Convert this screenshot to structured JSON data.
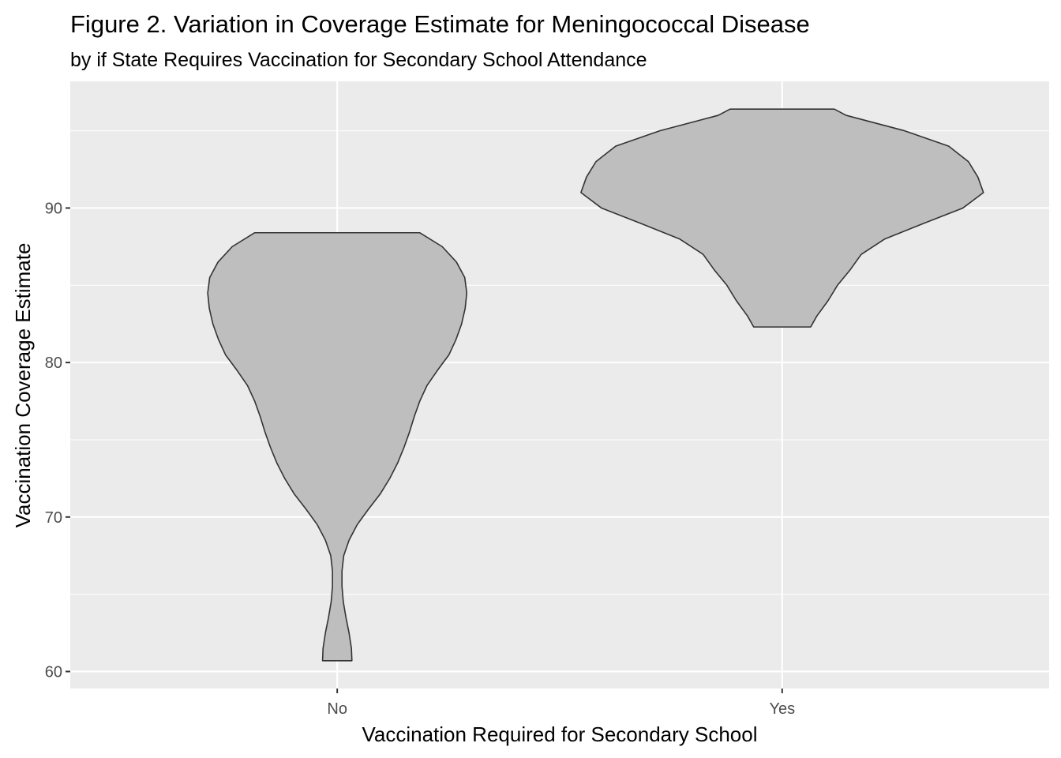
{
  "chart_data": {
    "type": "violin",
    "title": "Figure 2. Variation in Coverage Estimate for Meningococcal Disease",
    "subtitle": "by if State Requires Vaccination for Secondary School Attendance",
    "xlabel": "Vaccination Required for Secondary School",
    "ylabel": "Vaccination Coverage Estimate",
    "categories": [
      "No",
      "Yes"
    ],
    "ylim": [
      58.9,
      98.2
    ],
    "yticks": [
      60,
      70,
      80,
      90
    ],
    "yticklabels": [
      "60",
      "70",
      "80",
      "90"
    ],
    "grid": true,
    "legend": "none",
    "colors": {
      "panel": "#ebebeb",
      "fill": "#bebebe",
      "outline": "#333333",
      "grid": "#ffffff"
    },
    "series": [
      {
        "category": "No",
        "range": [
          60.7,
          88.4
        ],
        "density_profile": [
          {
            "y": 60.7,
            "w": 0.033
          },
          {
            "y": 61.5,
            "w": 0.0319
          },
          {
            "y": 62.5,
            "w": 0.0266
          },
          {
            "y": 63.5,
            "w": 0.0196
          },
          {
            "y": 64.5,
            "w": 0.0137
          },
          {
            "y": 65.5,
            "w": 0.0107
          },
          {
            "y": 66.5,
            "w": 0.0107
          },
          {
            "y": 67.5,
            "w": 0.0146
          },
          {
            "y": 68.5,
            "w": 0.0266
          },
          {
            "y": 69.5,
            "w": 0.0448
          },
          {
            "y": 70.5,
            "w": 0.07
          },
          {
            "y": 71.5,
            "w": 0.0968
          },
          {
            "y": 72.5,
            "w": 0.1181
          },
          {
            "y": 73.5,
            "w": 0.1358
          },
          {
            "y": 74.5,
            "w": 0.15
          },
          {
            "y": 75.5,
            "w": 0.1624
          },
          {
            "y": 76.5,
            "w": 0.1731
          },
          {
            "y": 77.5,
            "w": 0.1855
          },
          {
            "y": 78.5,
            "w": 0.2015
          },
          {
            "y": 79.5,
            "w": 0.2254
          },
          {
            "y": 80.5,
            "w": 0.2511
          },
          {
            "y": 81.5,
            "w": 0.2671
          },
          {
            "y": 82.5,
            "w": 0.2795
          },
          {
            "y": 83.5,
            "w": 0.2875
          },
          {
            "y": 84.5,
            "w": 0.2911
          },
          {
            "y": 85.5,
            "w": 0.2866
          },
          {
            "y": 86.5,
            "w": 0.268
          },
          {
            "y": 87.5,
            "w": 0.236
          },
          {
            "y": 88.4,
            "w": 0.1857
          }
        ]
      },
      {
        "category": "Yes",
        "range": [
          82.3,
          96.4
        ],
        "density_profile": [
          {
            "y": 82.3,
            "w": 0.064
          },
          {
            "y": 83.0,
            "w": 0.0777
          },
          {
            "y": 84.0,
            "w": 0.103
          },
          {
            "y": 85.0,
            "w": 0.1243
          },
          {
            "y": 86.0,
            "w": 0.1528
          },
          {
            "y": 87.0,
            "w": 0.1776
          },
          {
            "y": 88.0,
            "w": 0.2308
          },
          {
            "y": 89.0,
            "w": 0.3176
          },
          {
            "y": 90.0,
            "w": 0.4062
          },
          {
            "y": 91.0,
            "w": 0.4523
          },
          {
            "y": 92.0,
            "w": 0.4399
          },
          {
            "y": 93.0,
            "w": 0.4186
          },
          {
            "y": 94.0,
            "w": 0.3743
          },
          {
            "y": 95.0,
            "w": 0.275
          },
          {
            "y": 96.0,
            "w": 0.1437
          },
          {
            "y": 96.4,
            "w": 0.1172
          }
        ]
      }
    ]
  }
}
